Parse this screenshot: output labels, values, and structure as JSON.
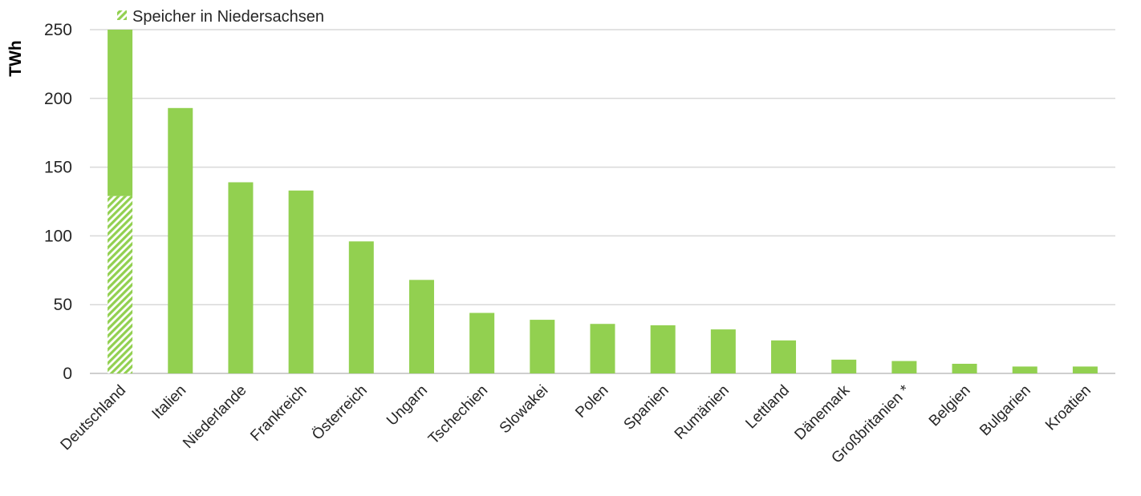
{
  "chart_data": {
    "type": "bar",
    "stacked": true,
    "categories": [
      "Deutschland",
      "Italien",
      "Niederlande",
      "Frankreich",
      "Österreich",
      "Ungarn",
      "Tschechien",
      "Slowakei",
      "Polen",
      "Spanien",
      "Rumänien",
      "Lettland",
      "Dänemark",
      "Großbritanien *",
      "Belgien",
      "Bulgarien",
      "Kroatien"
    ],
    "series": [
      {
        "name": "Speicher in Niedersachsen",
        "pattern": "diagonal-hatch",
        "color": "#92d050",
        "values": [
          129,
          0,
          0,
          0,
          0,
          0,
          0,
          0,
          0,
          0,
          0,
          0,
          0,
          0,
          0,
          0,
          0
        ]
      },
      {
        "color": "#92d050",
        "values": [
          121,
          193,
          139,
          133,
          96,
          68,
          44,
          39,
          36,
          35,
          32,
          24,
          10,
          9,
          7,
          5,
          5
        ]
      }
    ],
    "title": "",
    "xlabel": "",
    "ylabel": "TWh",
    "ylim": [
      0,
      250
    ],
    "yticks": [
      0,
      50,
      100,
      150,
      200,
      250
    ],
    "grid": true,
    "legend_position": "top-left"
  }
}
